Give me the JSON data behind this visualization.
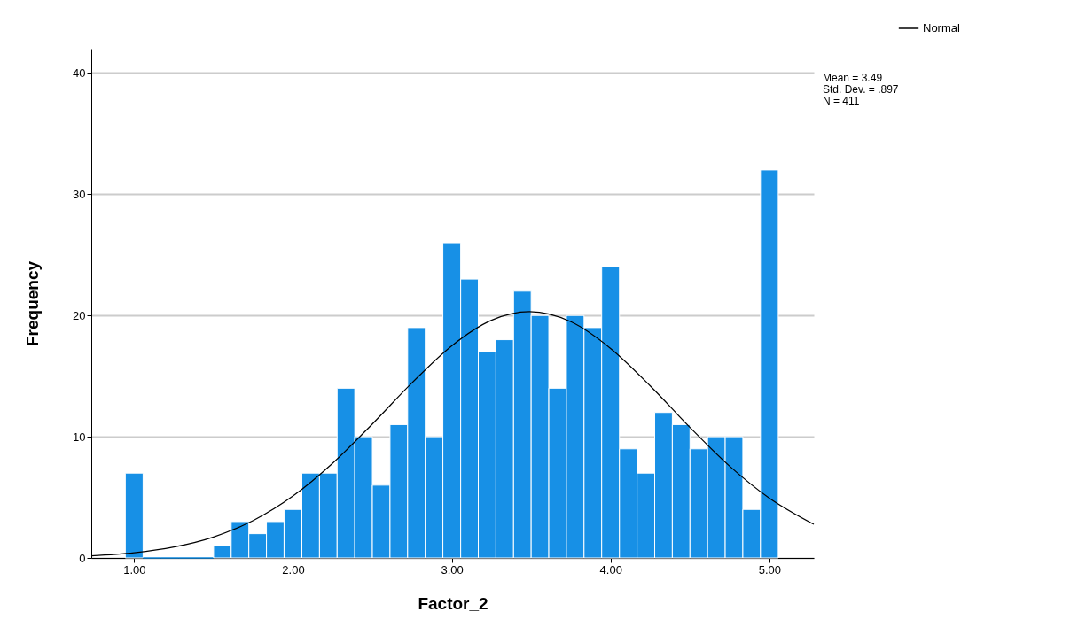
{
  "chart_data": {
    "type": "histogram",
    "xlabel": "Factor_2",
    "ylabel": "Frequency",
    "bins": [
      0.944,
      1.056,
      1.167,
      1.278,
      1.389,
      1.5,
      1.611,
      1.722,
      1.833,
      1.944,
      2.056,
      2.167,
      2.278,
      2.389,
      2.5,
      2.611,
      2.722,
      2.833,
      2.944,
      3.056,
      3.167,
      3.278,
      3.389,
      3.5,
      3.611,
      3.722,
      3.833,
      3.944,
      4.056,
      4.167,
      4.278,
      4.389,
      4.5,
      4.611,
      4.722,
      4.833,
      4.944,
      5.056
    ],
    "values": [
      7,
      0,
      0,
      0,
      0,
      1,
      3,
      2,
      3,
      4,
      7,
      7,
      14,
      10,
      6,
      11,
      19,
      10,
      26,
      23,
      17,
      18,
      22,
      20,
      14,
      20,
      19,
      24,
      9,
      7,
      12,
      11,
      9,
      10,
      10,
      4,
      32
    ],
    "color": "#1790e6",
    "series": [
      {
        "type": "line",
        "name": "Normal",
        "color": "#000000",
        "x": [
          0.73,
          1.0,
          1.25,
          1.5,
          1.75,
          2.0,
          2.25,
          2.5,
          2.75,
          3.0,
          3.25,
          3.49,
          3.75,
          4.0,
          4.25,
          4.5,
          4.75,
          5.0,
          5.28
        ],
        "values": [
          0.18,
          0.43,
          0.9,
          1.73,
          3.09,
          5.11,
          7.82,
          11.05,
          14.45,
          17.5,
          19.6,
          20.31,
          19.48,
          17.28,
          14.19,
          10.77,
          7.57,
          4.93,
          2.77
        ]
      }
    ],
    "xlim": [
      0.73,
      5.28
    ],
    "ylim": [
      0,
      42
    ],
    "xticks": [
      {
        "value": 1,
        "label": "1.00"
      },
      {
        "value": 2,
        "label": "2.00"
      },
      {
        "value": 3,
        "label": "3.00"
      },
      {
        "value": 4,
        "label": "4.00"
      },
      {
        "value": 5,
        "label": "5.00"
      }
    ],
    "yticks": [
      0,
      10,
      20,
      30,
      40
    ],
    "grid": "y",
    "legend": "top right",
    "annotations": [
      "Mean = 3.49",
      "Std. Dev. = .897",
      "N = 411"
    ]
  }
}
